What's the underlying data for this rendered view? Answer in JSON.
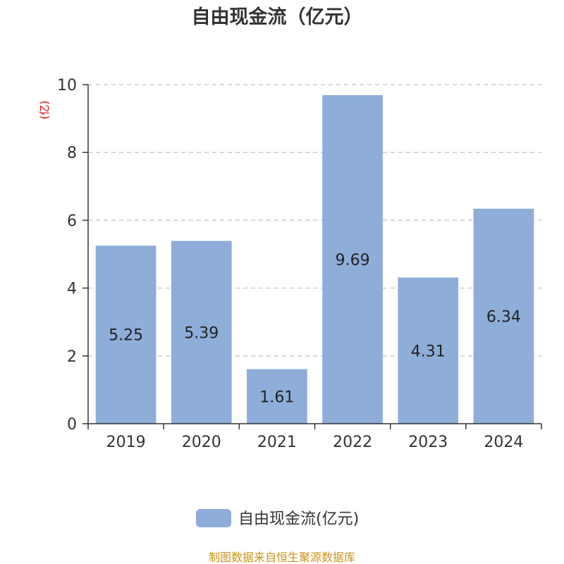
{
  "chart_data": {
    "type": "bar",
    "title": "自由现金流（亿元）",
    "xlabel": "",
    "ylabel": "",
    "y_unit_label": "(亿)",
    "categories": [
      "2019",
      "2020",
      "2021",
      "2022",
      "2023",
      "2024"
    ],
    "series": [
      {
        "name": "自由现金流(亿元)",
        "values": [
          5.25,
          5.39,
          1.61,
          9.69,
          4.31,
          6.34
        ]
      }
    ],
    "data_labels": [
      "5.25",
      "5.39",
      "1.61",
      "9.69",
      "4.31",
      "6.34"
    ],
    "ylim": [
      0,
      10
    ],
    "yticks": [
      0,
      2,
      4,
      6,
      8,
      10
    ],
    "grid": true,
    "legend_position": "bottom-center"
  },
  "source_note": "制图数据来自恒生聚源数据库",
  "colors": {
    "bar": "#8eadd9",
    "axis": "#333333",
    "grid": "#cccccc",
    "unit": "#e00000",
    "source": "#c8941e",
    "title": "#333333"
  }
}
